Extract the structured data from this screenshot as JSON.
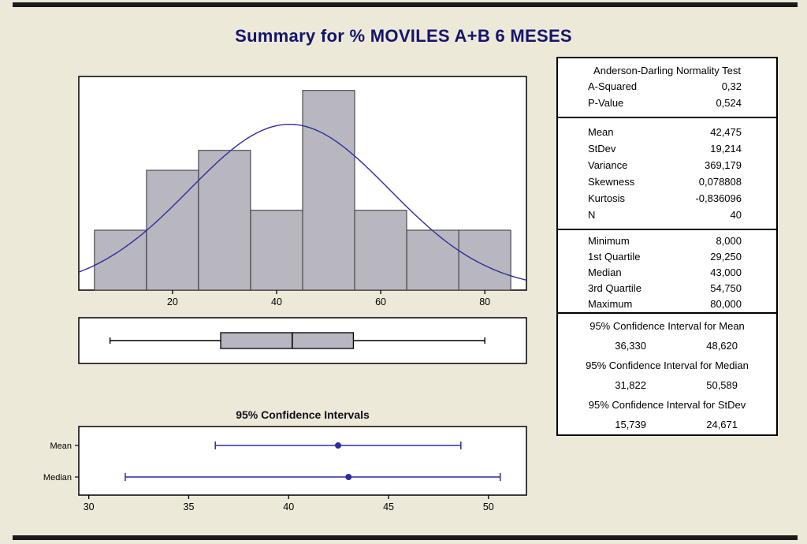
{
  "title": "Summary for % MOVILES A+B 6 MESES",
  "colors": {
    "background": "#ece9d8",
    "panel": "#ffffff",
    "bar_fill": "#b8b7bf",
    "bar_stroke": "#3f3f46",
    "curve": "#2d2da0",
    "interval": "#2d2da0",
    "title_text": "#14146e"
  },
  "chart_data": [
    {
      "type": "bar",
      "subtype": "histogram",
      "name": "histogram-with-normal-curve",
      "bin_start": 5,
      "bin_width": 10,
      "bin_centers": [
        10,
        20,
        30,
        40,
        50,
        60,
        70,
        80
      ],
      "frequencies": [
        3,
        6,
        7,
        4,
        10,
        4,
        3,
        3
      ],
      "xticks": [
        20,
        40,
        60,
        80
      ],
      "xlim": [
        2,
        88
      ],
      "ylim": [
        0,
        10.7
      ],
      "normal_overlay": {
        "mean": 42.475,
        "stdev": 19.214,
        "n": 40
      }
    },
    {
      "type": "boxplot",
      "name": "boxplot",
      "min": 8,
      "q1": 29.25,
      "median": 43,
      "q3": 54.75,
      "max": 80,
      "xlim": [
        2,
        88
      ]
    },
    {
      "type": "interval",
      "name": "confidence-intervals",
      "title": "95% Confidence Intervals",
      "rows": [
        {
          "label": "Mean",
          "low": 36.33,
          "high": 48.62,
          "center": 42.475
        },
        {
          "label": "Median",
          "low": 31.822,
          "high": 50.589,
          "center": 43.0
        }
      ],
      "xticks": [
        30,
        35,
        40,
        45,
        50
      ],
      "xlim": [
        29.5,
        51.9
      ]
    }
  ],
  "stats": {
    "normality": {
      "title": "Anderson-Darling Normality Test",
      "rows": [
        {
          "label": "A-Squared",
          "value": "0,32"
        },
        {
          "label": "P-Value",
          "value": "0,524"
        }
      ]
    },
    "moments": {
      "rows": [
        {
          "label": "Mean",
          "value": "42,475"
        },
        {
          "label": "StDev",
          "value": "19,214"
        },
        {
          "label": "Variance",
          "value": "369,179"
        },
        {
          "label": "Skewness",
          "value": "0,078808"
        },
        {
          "label": "Kurtosis",
          "value": "-0,836096"
        },
        {
          "label": "N",
          "value": "40"
        }
      ]
    },
    "quantiles": {
      "rows": [
        {
          "label": "Minimum",
          "value": "8,000"
        },
        {
          "label": "1st Quartile",
          "value": "29,250"
        },
        {
          "label": "Median",
          "value": "43,000"
        },
        {
          "label": "3rd Quartile",
          "value": "54,750"
        },
        {
          "label": "Maximum",
          "value": "80,000"
        }
      ]
    },
    "intervals": [
      {
        "title": "95% Confidence Interval for Mean",
        "low": "36,330",
        "high": "48,620"
      },
      {
        "title": "95% Confidence Interval for Median",
        "low": "31,822",
        "high": "50,589"
      },
      {
        "title": "95% Confidence Interval for StDev",
        "low": "15,739",
        "high": "24,671"
      }
    ]
  }
}
